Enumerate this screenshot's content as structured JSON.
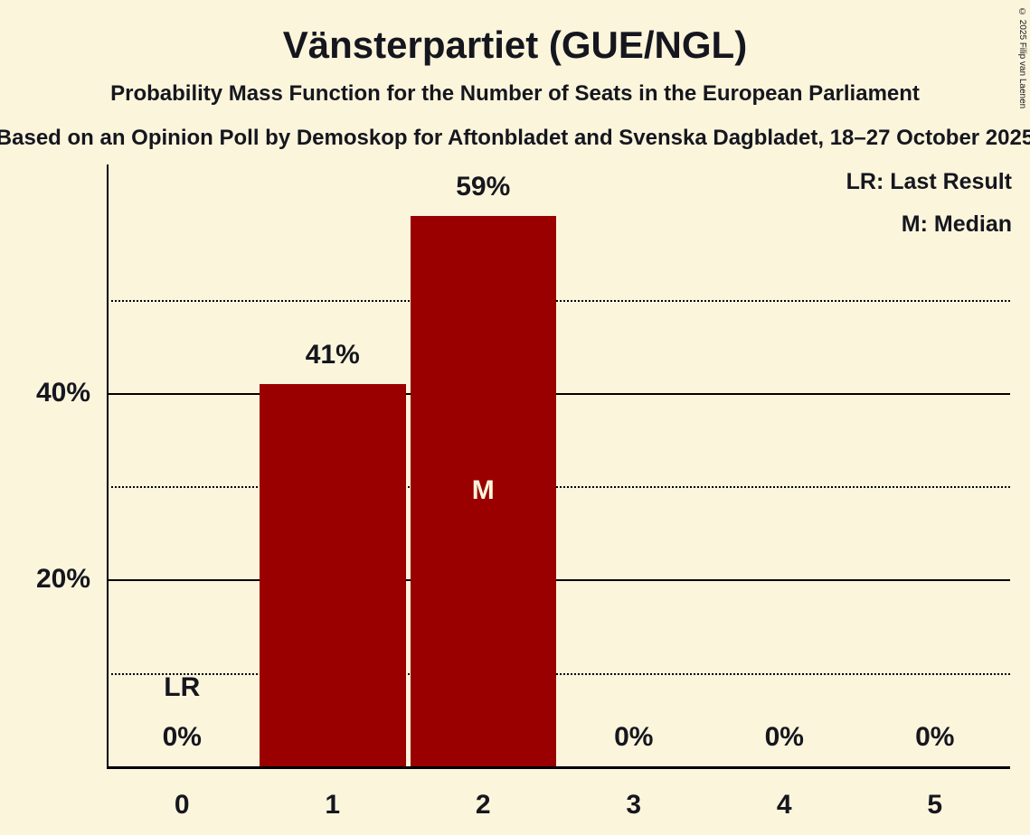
{
  "title": "Vänsterpartiet (GUE/NGL)",
  "subtitle": "Probability Mass Function for the Number of Seats in the European Parliament",
  "source_line": "Based on an Opinion Poll by Demoskop for Aftonbladet and Svenska Dagbladet, 18–27 October 2025",
  "copyright": "© 2025 Filip van Laenen",
  "legend": {
    "last_result": "LR: Last Result",
    "median": "M: Median"
  },
  "colors": {
    "background": "#FBF5DC",
    "bar": "#9B0000",
    "text": "#16161E",
    "axis": "#000000",
    "median_label": "#FBF5DC"
  },
  "chart_data": {
    "type": "bar",
    "title": "Vänsterpartiet (GUE/NGL)",
    "categories": [
      "0",
      "1",
      "2",
      "3",
      "4",
      "5"
    ],
    "values": [
      0,
      41,
      59,
      0,
      0,
      0
    ],
    "value_labels": [
      "0%",
      "41%",
      "59%",
      "0%",
      "0%",
      "0%"
    ],
    "ylim": [
      0,
      64.5
    ],
    "grid": "horizontal",
    "legend_position": "top-right",
    "gridlines": [
      {
        "value": 10,
        "style": "dotted",
        "label": ""
      },
      {
        "value": 20,
        "style": "solid",
        "label": "20%"
      },
      {
        "value": 30,
        "style": "dotted",
        "label": ""
      },
      {
        "value": 40,
        "style": "solid",
        "label": "40%"
      },
      {
        "value": 50,
        "style": "dotted",
        "label": ""
      }
    ],
    "median_index": 2,
    "median_marker": "M",
    "last_result_index": 0,
    "last_result_marker": "LR"
  }
}
